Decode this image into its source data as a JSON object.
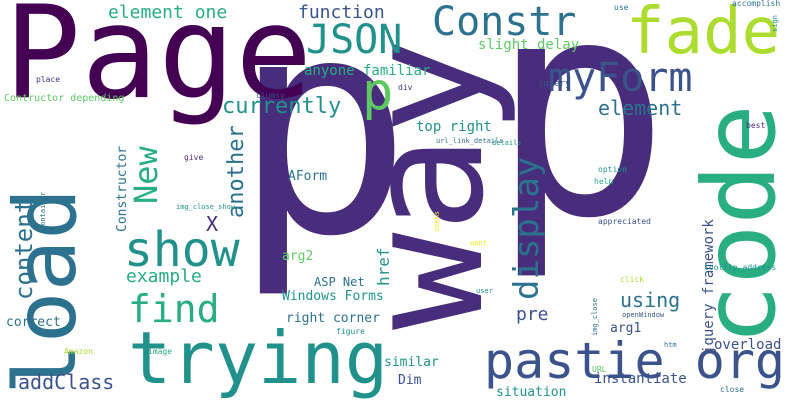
{
  "palette": {
    "deep_purple": "#440154",
    "indigo": "#472d7b",
    "slate_blue": "#3b528b",
    "steel_blue": "#2c728e",
    "teal": "#21918c",
    "green": "#28ae80",
    "light_green": "#5ec962",
    "lime": "#addc30",
    "yellow": "#fde725"
  },
  "words": [
    {
      "text": "p"
    },
    {
      "text": "way"
    },
    {
      "text": "p"
    },
    {
      "text": "Page"
    },
    {
      "text": "code"
    },
    {
      "text": "load"
    },
    {
      "text": "trying"
    },
    {
      "text": "fade"
    },
    {
      "text": "Constr"
    },
    {
      "text": "pastie org"
    },
    {
      "text": "myForm"
    },
    {
      "text": "show"
    },
    {
      "text": "JSON"
    },
    {
      "text": "p"
    },
    {
      "text": "find"
    },
    {
      "text": "display"
    },
    {
      "text": "content"
    },
    {
      "text": "New"
    },
    {
      "text": "currently"
    },
    {
      "text": "element one"
    },
    {
      "text": "function"
    },
    {
      "text": "element"
    },
    {
      "text": "anyone familiar"
    },
    {
      "text": "slight delay"
    },
    {
      "text": "another"
    },
    {
      "text": "addClass"
    },
    {
      "text": "example"
    },
    {
      "text": "top right"
    },
    {
      "text": "using"
    },
    {
      "text": "href"
    },
    {
      "text": "pre"
    },
    {
      "text": "X"
    },
    {
      "text": "jquery framework"
    },
    {
      "text": "overload"
    },
    {
      "text": "instantiate"
    },
    {
      "text": "situation"
    },
    {
      "text": "Windows Forms"
    },
    {
      "text": "right corner"
    },
    {
      "text": "ASP Net"
    },
    {
      "text": "AForm"
    },
    {
      "text": "arg1"
    },
    {
      "text": "arg2"
    },
    {
      "text": "similar"
    },
    {
      "text": "Dim"
    },
    {
      "text": "Constructor"
    },
    {
      "text": "correct"
    },
    {
      "text": "Contructor depending"
    },
    {
      "text": "use"
    },
    {
      "text": "jquery"
    },
    {
      "text": "accomplish"
    },
    {
      "text": "sign"
    },
    {
      "text": "place"
    },
    {
      "text": "clumsy"
    },
    {
      "text": "div"
    },
    {
      "text": "details"
    },
    {
      "text": "url_link_details"
    },
    {
      "text": "best"
    },
    {
      "text": "give"
    },
    {
      "text": "option"
    },
    {
      "text": "help"
    },
    {
      "text": "openWindow"
    },
    {
      "text": "container"
    },
    {
      "text": "img_close_show"
    },
    {
      "text": "seems"
    },
    {
      "text": "want"
    },
    {
      "text": "appreciated"
    },
    {
      "text": "tooltip_address"
    },
    {
      "text": "click"
    },
    {
      "text": "user"
    },
    {
      "text": "img_close"
    },
    {
      "text": "figure"
    },
    {
      "text": "htm"
    },
    {
      "text": "image"
    },
    {
      "text": "URL"
    },
    {
      "text": "Amazon"
    },
    {
      "text": "close"
    }
  ]
}
